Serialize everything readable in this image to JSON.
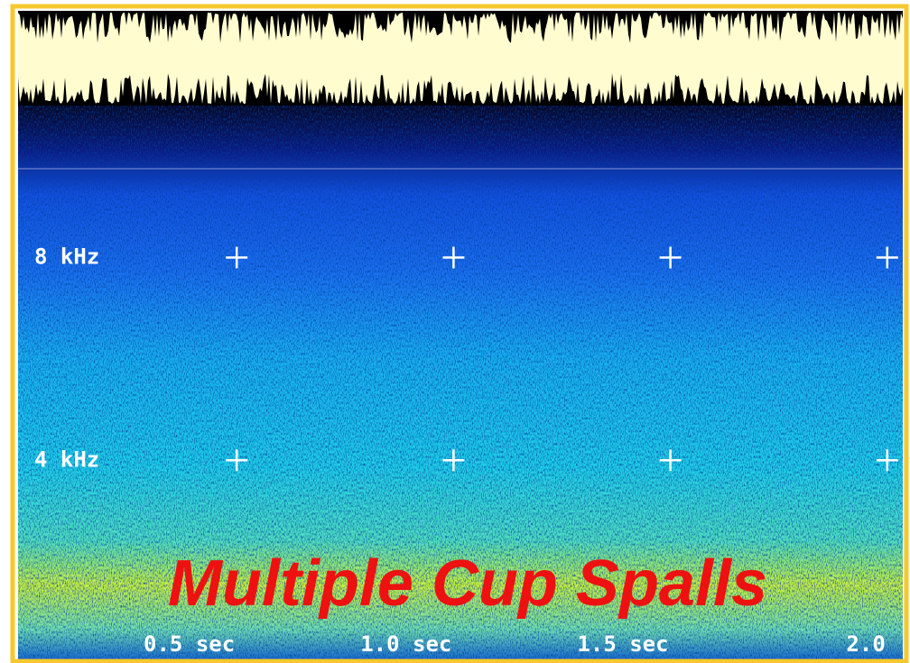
{
  "chart_data": {
    "type": "spectrogram",
    "title": "Multiple Cup Spalls",
    "xlim": [
      0,
      2.04
    ],
    "ylim": [
      0,
      11
    ],
    "xticks": [
      {
        "value": 0.5,
        "label": "0.5 sec"
      },
      {
        "value": 1.0,
        "label": "1.0 sec"
      },
      {
        "value": 1.5,
        "label": "1.5 sec"
      },
      {
        "value": 2,
        "label": "2.0"
      }
    ],
    "yticks": [
      {
        "value": 4,
        "label": "4 kHz"
      },
      {
        "value": 8,
        "label": "8 kHz"
      }
    ]
  }
}
